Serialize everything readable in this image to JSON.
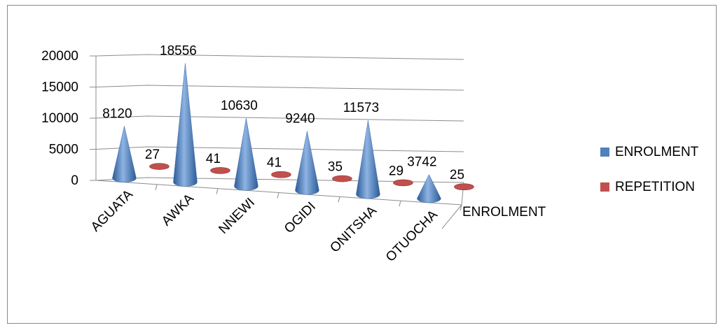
{
  "chart_data": {
    "type": "bar",
    "style": "3d-cone",
    "categories": [
      "AGUATA",
      "AWKA",
      "NNEWI",
      "OGIDI",
      "ONITSHA",
      "OTUOCHA"
    ],
    "series": [
      {
        "name": "ENROLMENT",
        "values": [
          8120,
          18556,
          10630,
          9240,
          11573,
          3742
        ],
        "color": "#4f81bd"
      },
      {
        "name": "REPETITION",
        "values": [
          27,
          41,
          41,
          35,
          29,
          25
        ],
        "color": "#c0504d"
      }
    ],
    "depth_label": "ENROLMENT",
    "y_ticks": [
      "0",
      "5000",
      "10000",
      "15000",
      "20000"
    ],
    "ylim": [
      0,
      20000
    ],
    "grid": true,
    "legend_position": "right"
  }
}
